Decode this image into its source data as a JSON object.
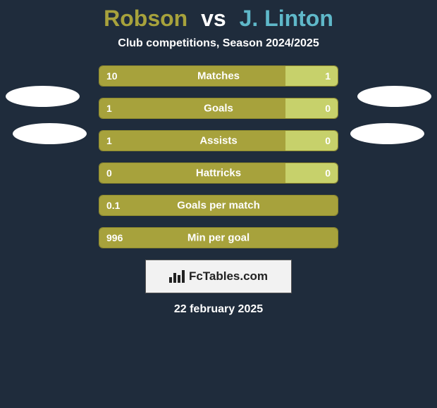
{
  "background_color": "#1f2c3c",
  "title": {
    "player1": "Robson",
    "vs": "vs",
    "player2": "J. Linton",
    "p1_color": "#a7a23c",
    "vs_color": "#ffffff",
    "p2_color": "#5fb8c9",
    "fontsize": 32
  },
  "subtitle": {
    "text": "Club competitions, Season 2024/2025",
    "color": "#ffffff",
    "fontsize": 16
  },
  "bar_colors": {
    "left": "#a7a23c",
    "right": "#c7d16b",
    "border": "#8f8a2e"
  },
  "text_colors": {
    "row_label": "#ffffff",
    "values": "#ffffff"
  },
  "rows": [
    {
      "label": "Matches",
      "left_val": "10",
      "right_val": "1",
      "left_pct": 78,
      "right_pct": 22
    },
    {
      "label": "Goals",
      "left_val": "1",
      "right_val": "0",
      "left_pct": 78,
      "right_pct": 22
    },
    {
      "label": "Assists",
      "left_val": "1",
      "right_val": "0",
      "left_pct": 78,
      "right_pct": 22
    },
    {
      "label": "Hattricks",
      "left_val": "0",
      "right_val": "0",
      "left_pct": 78,
      "right_pct": 22
    },
    {
      "label": "Goals per match",
      "left_val": "0.1",
      "right_val": "",
      "left_pct": 100,
      "right_pct": 0
    },
    {
      "label": "Min per goal",
      "left_val": "996",
      "right_val": "",
      "left_pct": 100,
      "right_pct": 0
    }
  ],
  "logo": {
    "text": "FcTables.com",
    "bg": "#f2f2f2",
    "color": "#222222"
  },
  "date": {
    "text": "22 february 2025",
    "color": "#ffffff"
  },
  "avatars": {
    "bg": "#ffffff"
  }
}
